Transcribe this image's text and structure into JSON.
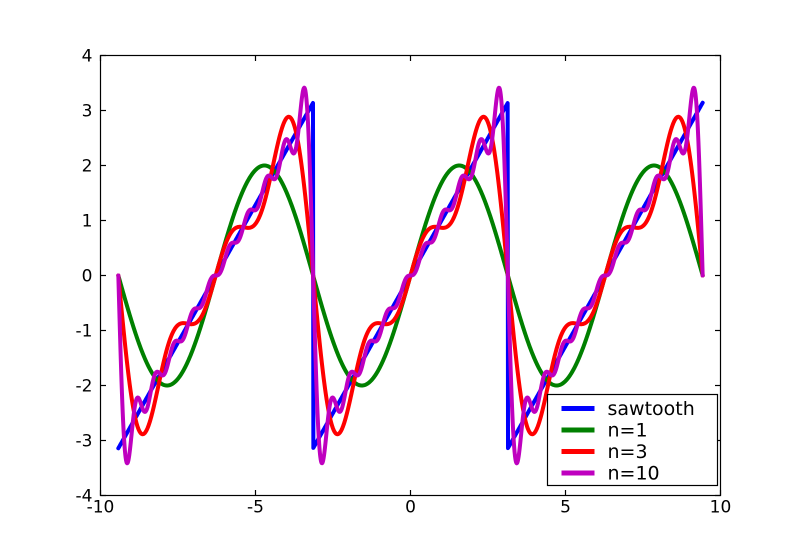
{
  "figure": {
    "background": "#ffffff",
    "axes_frame_color": "#000000",
    "tick_color": "#000000",
    "text_color": "#000000"
  },
  "chart_data": {
    "type": "line",
    "title": "",
    "xlabel": "",
    "ylabel": "",
    "xlim": [
      -10,
      10
    ],
    "ylim": [
      -4,
      4
    ],
    "x_ticks": [
      -10,
      -5,
      0,
      5,
      10
    ],
    "y_ticks": [
      -4,
      -3,
      -2,
      -1,
      0,
      1,
      2,
      3,
      4
    ],
    "grid": false,
    "tick_direction": "in",
    "sample_domain": [
      -9.42477796077,
      9.42477796077
    ],
    "sample_count": 1600,
    "sawtooth_period": 6.28318530718,
    "sawtooth_description": "y = x wrapped to (-pi, pi); discontinuities at odd multiples of pi; range -3.1416 to 3.1416",
    "fourier_formula": "y = 2 * sum_{k=1..n} (-1)^(k+1) * sin(k*x) / k",
    "gibbs_overshoot_n10": 3.44,
    "series": [
      {
        "label": "sawtooth",
        "color": "#0000ff",
        "kind": "sawtooth",
        "terms": null
      },
      {
        "label": "n=1",
        "color": "#008000",
        "kind": "fourier_partial_sum",
        "terms": 1
      },
      {
        "label": "n=3",
        "color": "#ff0000",
        "kind": "fourier_partial_sum",
        "terms": 3
      },
      {
        "label": "n=10",
        "color": "#bf00bf",
        "kind": "fourier_partial_sum",
        "terms": 10
      }
    ],
    "legend": {
      "location": "lower right",
      "border_color": "#000000",
      "background": "#ffffff",
      "entries": [
        "sawtooth",
        "n=1",
        "n=3",
        "n=10"
      ]
    }
  }
}
